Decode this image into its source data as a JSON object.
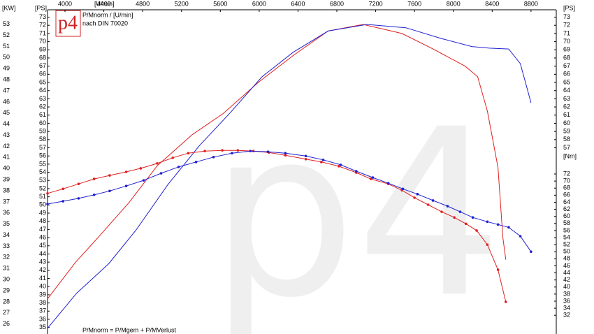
{
  "chart_data": {
    "type": "line",
    "logo": "p4",
    "watermark": "p4",
    "title": "P/Mnorm / [U/min]",
    "subtitle": "nach DIN 70020",
    "footnote": "P/Mnorm = P/Mgem + P/MVerlust",
    "x_label": "[U/min]",
    "y_label": "[PS]",
    "kw_label": "[KW]",
    "y_right_label": "[PS]",
    "y2_label": "[Nm]",
    "xlim": [
      3820,
      9060
    ],
    "xticks": [
      4000,
      4400,
      4800,
      5200,
      5600,
      6000,
      6400,
      6800,
      7200,
      7600,
      8000,
      8400,
      8800
    ],
    "ylim": [
      34.2,
      73.9
    ],
    "yticks": [
      35,
      36,
      37,
      38,
      39,
      40,
      41,
      42,
      43,
      44,
      45,
      46,
      47,
      48,
      49,
      50,
      51,
      52,
      53,
      54,
      55,
      56,
      57,
      58,
      59,
      60,
      61,
      62,
      63,
      64,
      65,
      66,
      67,
      68,
      69,
      70,
      71,
      72,
      73
    ],
    "y_right_ticks": [
      57,
      58,
      59,
      60,
      61,
      62,
      63,
      64,
      65,
      66,
      67,
      68,
      69,
      70,
      71,
      72,
      73
    ],
    "kw_ylim": [
      25.1,
      54.3
    ],
    "kw_ticks": [
      26,
      27,
      28,
      29,
      30,
      31,
      32,
      33,
      34,
      35,
      36,
      37,
      38,
      39,
      40,
      41,
      42,
      43,
      44,
      45,
      46,
      47,
      48,
      49,
      50,
      51,
      52,
      53
    ],
    "y2lim": [
      26.7,
      118.5
    ],
    "y2ticks": [
      32,
      34,
      36,
      38,
      40,
      42,
      44,
      46,
      48,
      50,
      52,
      54,
      56,
      58,
      60,
      62,
      64,
      66,
      68,
      70,
      72
    ],
    "grid": false,
    "series": [
      {
        "color": "#e02020",
        "axis": "y",
        "markers": false,
        "x": [
          3820,
          4110,
          4340,
          4660,
          4950,
          5310,
          5630,
          5990,
          6350,
          6710,
          7070,
          7470,
          7790,
          8120,
          8250,
          8350,
          8460,
          8510,
          8540
        ],
        "values": [
          38.5,
          43.0,
          46.0,
          50.3,
          54.8,
          58.6,
          61.2,
          65.0,
          68.3,
          71.3,
          72.1,
          71.0,
          69.1,
          67.0,
          65.7,
          61.5,
          54.6,
          46.0,
          43.3
        ]
      },
      {
        "color": "#2020d0",
        "axis": "y",
        "markers": false,
        "x": [
          3820,
          4120,
          4450,
          4730,
          5060,
          5380,
          5710,
          6030,
          6350,
          6710,
          7110,
          7510,
          7870,
          8190,
          8370,
          8570,
          8690,
          8800
        ],
        "values": [
          34.9,
          39.2,
          42.8,
          46.9,
          52.5,
          57.2,
          61.4,
          65.7,
          68.7,
          71.3,
          72.1,
          71.7,
          70.4,
          69.4,
          69.2,
          69.1,
          67.3,
          62.5
        ]
      },
      {
        "color": "#e02020",
        "axis": "y2",
        "markers": true,
        "x": [
          3820,
          3980,
          4140,
          4300,
          4460,
          4630,
          4780,
          4950,
          5110,
          5270,
          5440,
          5620,
          5780,
          5940,
          6100,
          6270,
          6480,
          6640,
          6820,
          7000,
          7150,
          7330,
          7470,
          7600,
          7740,
          7880,
          8010,
          8130,
          8240,
          8350,
          8460,
          8540
        ],
        "values": [
          66.5,
          67.8,
          69.2,
          70.6,
          71.6,
          72.6,
          73.6,
          75.0,
          76.6,
          77.9,
          78.5,
          78.7,
          78.7,
          78.5,
          78.1,
          77.3,
          76.2,
          75.4,
          74.2,
          72.4,
          70.6,
          69.2,
          67.4,
          65.3,
          63.3,
          61.3,
          59.7,
          57.9,
          56.0,
          52.0,
          44.9,
          35.8
        ]
      },
      {
        "color": "#2020d0",
        "axis": "y2",
        "markers": true,
        "x": [
          3820,
          3980,
          4140,
          4300,
          4460,
          4630,
          4810,
          4990,
          5170,
          5350,
          5530,
          5720,
          5910,
          6090,
          6270,
          6480,
          6660,
          6840,
          7000,
          7170,
          7330,
          7480,
          7630,
          7790,
          7940,
          8070,
          8200,
          8350,
          8460,
          8570,
          8690,
          8800
        ],
        "values": [
          63.5,
          64.3,
          65.1,
          66.1,
          67.2,
          68.6,
          70.2,
          72.2,
          74.0,
          75.4,
          76.8,
          77.9,
          78.5,
          78.3,
          77.9,
          77.1,
          76.0,
          74.6,
          72.8,
          71.0,
          69.4,
          67.8,
          66.3,
          64.5,
          62.9,
          61.3,
          59.7,
          58.5,
          57.7,
          56.9,
          54.4,
          50.0
        ]
      }
    ]
  }
}
